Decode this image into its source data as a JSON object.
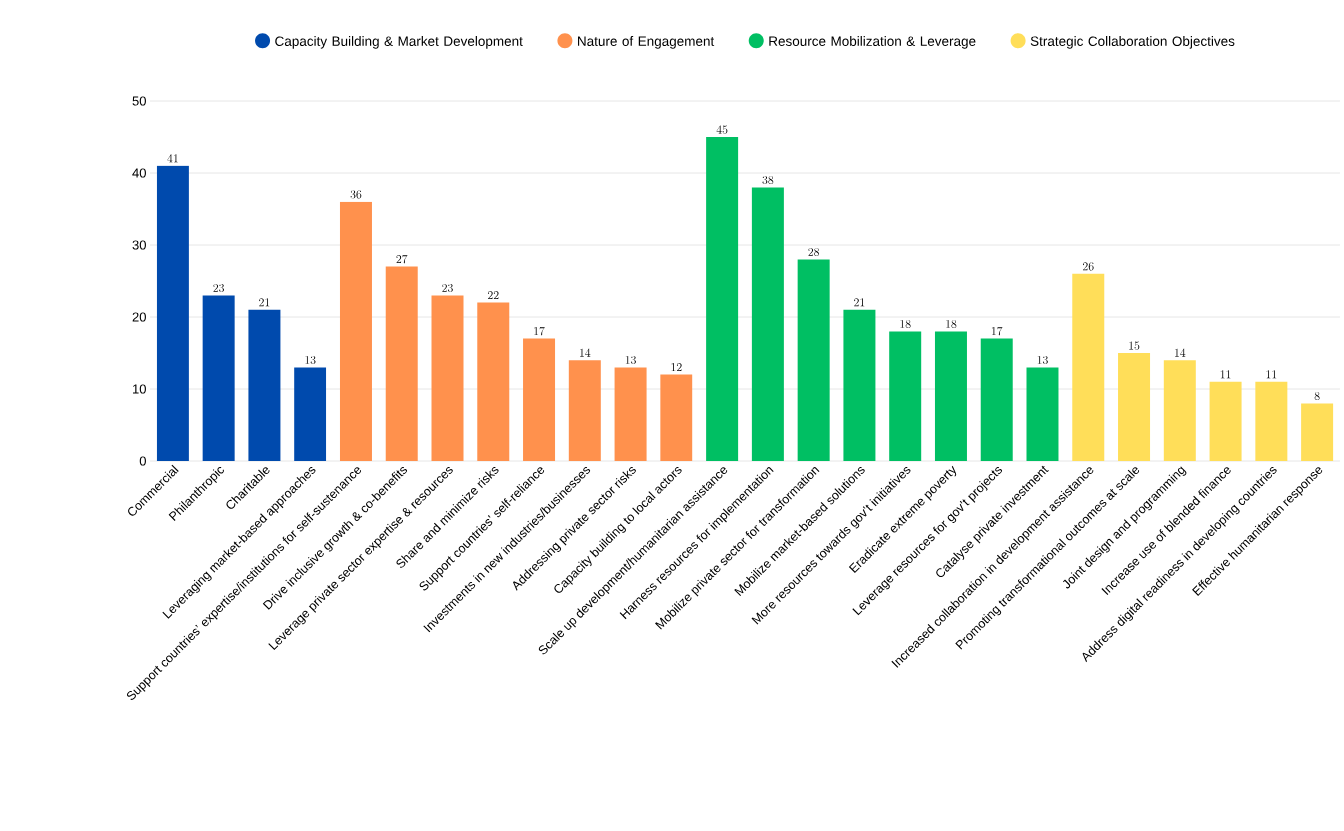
{
  "chart_data": {
    "type": "bar",
    "categories": [
      "Commercial",
      "Philanthropic",
      "Charitable",
      "Leveraging market-based approaches",
      "Support countries’ expertise/institutions for self-sustenance",
      "Drive inclusive growth & co-benefits",
      "Leverage private sector expertise & resources",
      "Share and minimize risks",
      "Support countries’ self-reliance",
      "Investments in new industries/businesses",
      "Addressing private sector risks",
      "Capacity building to local actors",
      "Scale up development/humanitarian assistance",
      "Harness resources for implementation",
      "Mobilize private sector for transformation",
      "Mobilize market-based solutions",
      "More resources towards gov’t initiatives",
      "Eradicate extreme poverty",
      "Leverage resources for gov’t projects",
      "Catalyse private investment",
      "Increased collaboration in development assistance",
      "Promoting transformational outcomes at scale",
      "Joint design and programming",
      "Increase use of blended finance",
      "Address digital readiness in developing countries",
      "Effective humanitarian response"
    ],
    "series": [
      {
        "name": "Capacity Building & Market Development",
        "color": "#004aad",
        "values": [
          41,
          23,
          21,
          13,
          null,
          null,
          null,
          null,
          null,
          null,
          null,
          null,
          null,
          null,
          null,
          null,
          null,
          null,
          null,
          null,
          null,
          null,
          null,
          null,
          null,
          null
        ]
      },
      {
        "name": "Nature of Engagement",
        "color": "#ff914d",
        "values": [
          null,
          null,
          null,
          null,
          36,
          27,
          23,
          22,
          17,
          14,
          13,
          12,
          null,
          null,
          null,
          null,
          null,
          null,
          null,
          null,
          null,
          null,
          null,
          null,
          null,
          null
        ]
      },
      {
        "name": "Resource Mobilization & Leverage",
        "color": "#00bf63",
        "values": [
          null,
          null,
          null,
          null,
          null,
          null,
          null,
          null,
          null,
          null,
          null,
          null,
          45,
          38,
          28,
          21,
          18,
          18,
          17,
          13,
          null,
          null,
          null,
          null,
          null,
          null
        ]
      },
      {
        "name": "Strategic Collaboration Objectives",
        "color": "#ffde59",
        "values": [
          null,
          null,
          null,
          null,
          null,
          null,
          null,
          null,
          null,
          null,
          null,
          null,
          null,
          null,
          null,
          null,
          null,
          null,
          null,
          null,
          26,
          15,
          14,
          11,
          11,
          8
        ]
      }
    ],
    "ylim": [
      0,
      50
    ],
    "yticks": [
      0,
      10,
      20,
      30,
      40,
      50
    ],
    "grid": "y",
    "legend": "top",
    "data_labels": true
  }
}
